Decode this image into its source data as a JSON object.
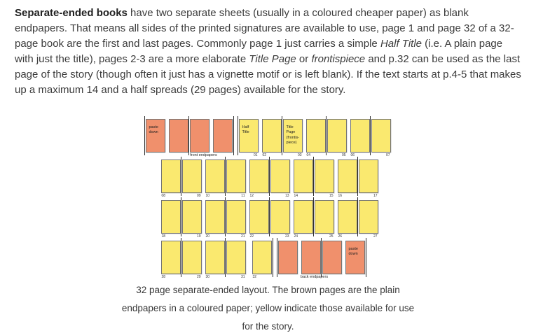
{
  "intro": {
    "runs": [
      {
        "t": "Separate-ended books",
        "b": true
      },
      {
        "t": " have two separate sheets (usually in a coloured cheaper paper) as blank endpapers. That means all sides of the printed signatures are available to use, page 1 and page 32 of a 32-page book are the first and last pages. Commonly page 1 just carries a simple "
      },
      {
        "t": "Half Title",
        "i": true
      },
      {
        "t": " (i.e. A plain page with just the title), pages 2-3 are a more elaborate "
      },
      {
        "t": "Title Page",
        "i": true
      },
      {
        "t": " or "
      },
      {
        "t": "frontispiece",
        "i": true
      },
      {
        "t": " and p.32 can be used as the last page of the story (though often it just has a vignette motif or is left blank). If the text starts at p.4-5 that makes up a maximum 14 and a half spreads (29 pages) available for the story."
      }
    ]
  },
  "colors": {
    "endpaper_page": "#f0906c",
    "story_page": "#fae96f",
    "page_border": "#757575",
    "fold_line": "#2f2f2f"
  },
  "diagram": {
    "rows": [
      {
        "group_label": "front endpapers",
        "blocks": [
          {
            "kind": "single",
            "color": "endpaper",
            "fold": "left",
            "text": "paste\ndown"
          },
          {
            "kind": "spread",
            "color": "endpaper"
          },
          {
            "kind": "single",
            "color": "endpaper",
            "fold": "right"
          },
          {
            "kind": "gap"
          },
          {
            "kind": "single",
            "color": "story",
            "fold": "left",
            "text": "Half\nTitle",
            "num_right": "01"
          },
          {
            "kind": "spread",
            "color": "story",
            "text_right": "Title Page\n(frontis-\npiece)",
            "num_left": "02",
            "num_right": "03"
          },
          {
            "kind": "spread",
            "color": "story",
            "num_left": "04",
            "num_right": "05"
          },
          {
            "kind": "spread",
            "color": "story",
            "num_left": "06",
            "num_right": "07"
          }
        ]
      },
      {
        "blocks": [
          {
            "kind": "spread",
            "color": "story",
            "num_left": "08",
            "num_right": "09"
          },
          {
            "kind": "spread",
            "color": "story",
            "num_left": "10",
            "num_right": "11"
          },
          {
            "kind": "spread",
            "color": "story",
            "num_left": "12",
            "num_right": "13"
          },
          {
            "kind": "spread",
            "color": "story",
            "num_left": "14",
            "num_right": "15"
          },
          {
            "kind": "spread",
            "color": "story",
            "num_left": "16",
            "num_right": "17"
          }
        ]
      },
      {
        "blocks": [
          {
            "kind": "spread",
            "color": "story",
            "num_left": "18",
            "num_right": "19"
          },
          {
            "kind": "spread",
            "color": "story",
            "num_left": "20",
            "num_right": "21"
          },
          {
            "kind": "spread",
            "color": "story",
            "num_left": "22",
            "num_right": "23"
          },
          {
            "kind": "spread",
            "color": "story",
            "num_left": "24",
            "num_right": "25"
          },
          {
            "kind": "spread",
            "color": "story",
            "num_left": "26",
            "num_right": "27"
          }
        ]
      },
      {
        "group_label": "back endpapers",
        "blocks": [
          {
            "kind": "spread",
            "color": "story",
            "num_left": "28",
            "num_right": "29"
          },
          {
            "kind": "spread",
            "color": "story",
            "num_left": "30",
            "num_right": "31"
          },
          {
            "kind": "gap"
          },
          {
            "kind": "single",
            "color": "story",
            "fold": "right",
            "num_left": "32"
          },
          {
            "kind": "gap"
          },
          {
            "kind": "single",
            "color": "endpaper",
            "fold": "left"
          },
          {
            "kind": "spread",
            "color": "endpaper"
          },
          {
            "kind": "single",
            "color": "endpaper",
            "fold": "right",
            "text": "paste\ndown"
          }
        ]
      }
    ]
  },
  "caption": {
    "text": "32 page separate-ended layout. The brown pages are the plain endpapers in a coloured paper; yellow indicate those available for use for the story."
  }
}
